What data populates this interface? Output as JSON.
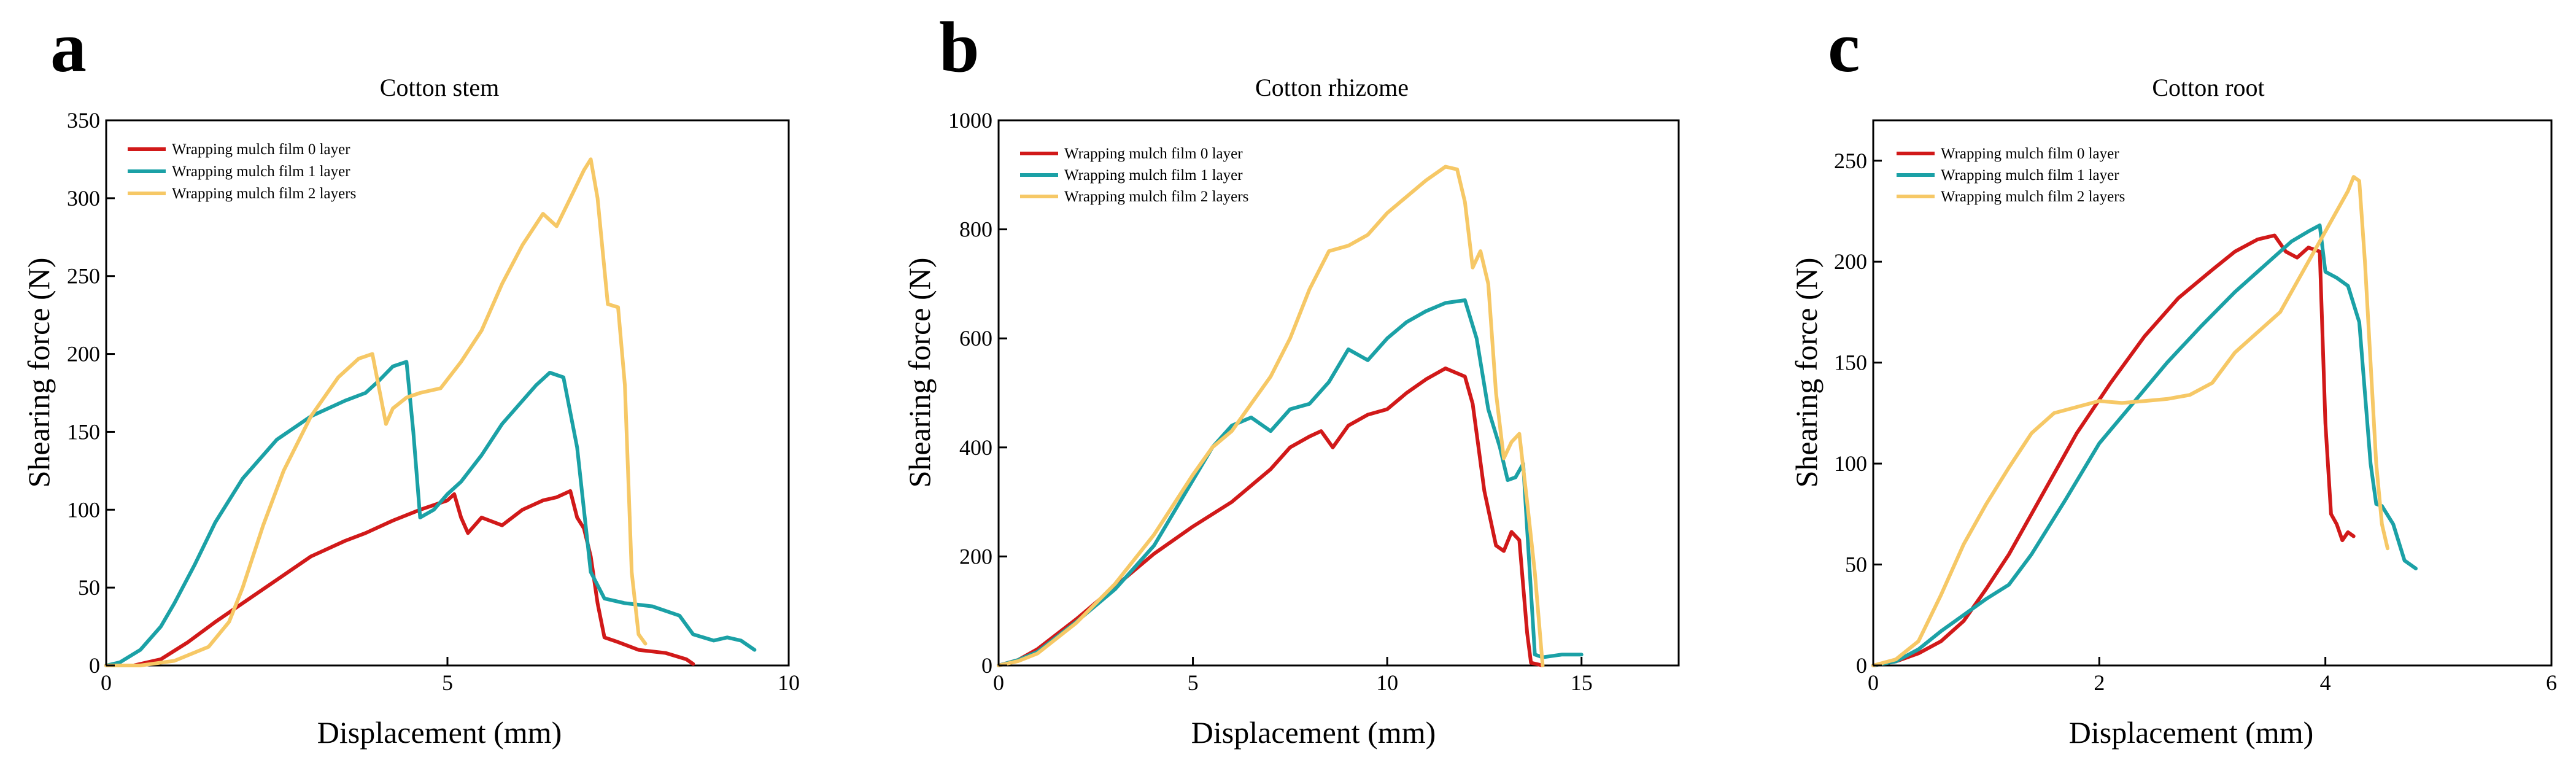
{
  "colors": {
    "layer0": "#d11919",
    "layer1": "#1ba1a6",
    "layer2": "#f6c866",
    "axis": "#000000",
    "background": "#ffffff"
  },
  "panels": [
    {
      "letter": "a"
    },
    {
      "letter": "b"
    },
    {
      "letter": "c"
    }
  ],
  "chart_data": [
    {
      "type": "line",
      "title": "Cotton stem",
      "xlabel": "Displacement (mm)",
      "ylabel": "Shearing force (N)",
      "xlim": [
        0,
        10
      ],
      "ylim": [
        0,
        350
      ],
      "xticks": [
        0,
        5,
        10
      ],
      "yticks": [
        0,
        50,
        100,
        150,
        200,
        250,
        300,
        350
      ],
      "legend_position": "top-left",
      "series": [
        {
          "name": "Wrapping mulch film 0 layer",
          "color": "#d11919",
          "x": [
            0,
            0.4,
            0.8,
            1.2,
            1.6,
            2.0,
            2.5,
            3.0,
            3.5,
            3.8,
            4.2,
            4.6,
            5.0,
            5.1,
            5.2,
            5.3,
            5.5,
            5.8,
            6.1,
            6.4,
            6.6,
            6.8,
            6.9,
            7.0,
            7.1,
            7.2,
            7.3,
            7.5,
            7.8,
            8.2,
            8.5,
            8.6
          ],
          "y": [
            0,
            0,
            4,
            15,
            28,
            40,
            55,
            70,
            80,
            85,
            93,
            100,
            106,
            110,
            95,
            85,
            95,
            90,
            100,
            106,
            108,
            112,
            95,
            88,
            70,
            40,
            18,
            15,
            10,
            8,
            4,
            1
          ]
        },
        {
          "name": "Wrapping mulch film 1 layer",
          "color": "#1ba1a6",
          "x": [
            0,
            0.2,
            0.5,
            0.8,
            1.0,
            1.3,
            1.6,
            2.0,
            2.5,
            3.0,
            3.5,
            3.8,
            4.0,
            4.2,
            4.4,
            4.5,
            4.6,
            4.8,
            5.0,
            5.2,
            5.5,
            5.8,
            6.1,
            6.3,
            6.5,
            6.7,
            6.9,
            7.1,
            7.3,
            7.6,
            8.0,
            8.4,
            8.6,
            8.9,
            9.1,
            9.3,
            9.5
          ],
          "y": [
            0,
            2,
            10,
            25,
            40,
            65,
            92,
            120,
            145,
            160,
            170,
            175,
            183,
            192,
            195,
            150,
            95,
            100,
            110,
            118,
            135,
            155,
            170,
            180,
            188,
            185,
            140,
            60,
            43,
            40,
            38,
            32,
            20,
            16,
            18,
            16,
            10
          ]
        },
        {
          "name": "Wrapping mulch film 2 layers",
          "color": "#f6c866",
          "x": [
            0,
            0.5,
            1.0,
            1.5,
            1.8,
            2.0,
            2.3,
            2.6,
            3.0,
            3.4,
            3.7,
            3.9,
            4.1,
            4.2,
            4.4,
            4.6,
            4.9,
            5.2,
            5.5,
            5.8,
            6.1,
            6.4,
            6.6,
            6.8,
            7.0,
            7.1,
            7.2,
            7.35,
            7.5,
            7.6,
            7.7,
            7.8,
            7.9
          ],
          "y": [
            0,
            0,
            3,
            12,
            28,
            50,
            90,
            125,
            160,
            185,
            197,
            200,
            155,
            165,
            172,
            175,
            178,
            195,
            215,
            245,
            270,
            290,
            282,
            300,
            318,
            325,
            300,
            232,
            230,
            180,
            60,
            20,
            14
          ]
        }
      ]
    },
    {
      "type": "line",
      "title": "Cotton rhizome",
      "xlabel": "Displacement (mm)",
      "ylabel": "Shearing force (N)",
      "xlim": [
        0,
        17.5
      ],
      "ylim": [
        0,
        1000
      ],
      "xticks": [
        0,
        5,
        10,
        15
      ],
      "yticks": [
        0,
        200,
        400,
        600,
        800,
        1000
      ],
      "legend_position": "top-left",
      "series": [
        {
          "name": "Wrapping mulch film 0 layer",
          "color": "#d11919",
          "x": [
            0,
            0.5,
            1.0,
            2.0,
            3.0,
            4.0,
            5.0,
            6.0,
            7.0,
            7.5,
            8.0,
            8.3,
            8.6,
            9.0,
            9.5,
            10.0,
            10.5,
            11.0,
            11.5,
            12.0,
            12.2,
            12.5,
            12.8,
            13.0,
            13.2,
            13.4,
            13.6,
            13.7,
            14.0
          ],
          "y": [
            0,
            10,
            30,
            85,
            145,
            205,
            255,
            300,
            360,
            400,
            420,
            430,
            400,
            440,
            460,
            470,
            500,
            525,
            545,
            530,
            480,
            320,
            220,
            210,
            245,
            230,
            60,
            5,
            0
          ]
        },
        {
          "name": "Wrapping mulch film 1 layer",
          "color": "#1ba1a6",
          "x": [
            0,
            0.5,
            1.0,
            2.0,
            3.0,
            4.0,
            5.0,
            5.5,
            6.0,
            6.5,
            7.0,
            7.5,
            8.0,
            8.5,
            9.0,
            9.5,
            10.0,
            10.5,
            11.0,
            11.5,
            12.0,
            12.3,
            12.6,
            12.9,
            13.1,
            13.3,
            13.5,
            13.6,
            13.8,
            14.0,
            14.5,
            15.0
          ],
          "y": [
            0,
            10,
            25,
            80,
            140,
            220,
            340,
            400,
            440,
            455,
            430,
            470,
            480,
            520,
            580,
            560,
            600,
            630,
            650,
            665,
            670,
            600,
            470,
            400,
            340,
            345,
            370,
            250,
            20,
            15,
            20,
            20
          ]
        },
        {
          "name": "Wrapping mulch film 2 layers",
          "color": "#f6c866",
          "x": [
            0,
            0.5,
            1.0,
            2.0,
            3.0,
            4.0,
            5.0,
            5.5,
            6.0,
            6.5,
            7.0,
            7.5,
            8.0,
            8.5,
            9.0,
            9.5,
            10.0,
            10.5,
            11.0,
            11.5,
            11.8,
            12.0,
            12.2,
            12.4,
            12.6,
            12.8,
            13.0,
            13.2,
            13.4,
            13.6,
            13.8,
            14.0
          ],
          "y": [
            0,
            8,
            22,
            78,
            150,
            240,
            350,
            400,
            430,
            480,
            530,
            600,
            690,
            760,
            770,
            790,
            830,
            860,
            890,
            915,
            910,
            850,
            730,
            760,
            700,
            500,
            380,
            410,
            425,
            300,
            170,
            0
          ]
        }
      ]
    },
    {
      "type": "line",
      "title": "Cotton root",
      "xlabel": "Displacement (mm)",
      "ylabel": "Shearing force (N)",
      "xlim": [
        0,
        6
      ],
      "ylim": [
        0,
        270
      ],
      "xticks": [
        0,
        2,
        4,
        6
      ],
      "yticks": [
        0,
        50,
        100,
        150,
        200,
        250
      ],
      "legend_position": "top-left",
      "series": [
        {
          "name": "Wrapping mulch film 0 layer",
          "color": "#d11919",
          "x": [
            0,
            0.2,
            0.4,
            0.6,
            0.8,
            1.0,
            1.2,
            1.5,
            1.8,
            2.1,
            2.4,
            2.7,
            3.0,
            3.2,
            3.4,
            3.55,
            3.65,
            3.75,
            3.85,
            3.95,
            4.0,
            4.05,
            4.1,
            4.15,
            4.2,
            4.25
          ],
          "y": [
            0,
            2,
            6,
            12,
            22,
            38,
            55,
            85,
            115,
            140,
            163,
            182,
            196,
            205,
            211,
            213,
            205,
            202,
            207,
            205,
            120,
            75,
            70,
            62,
            66,
            64
          ]
        },
        {
          "name": "Wrapping mulch film 1 layer",
          "color": "#1ba1a6",
          "x": [
            0,
            0.2,
            0.4,
            0.6,
            0.8,
            1.0,
            1.2,
            1.4,
            1.7,
            2.0,
            2.3,
            2.6,
            2.9,
            3.2,
            3.5,
            3.7,
            3.85,
            3.95,
            4.0,
            4.1,
            4.2,
            4.3,
            4.4,
            4.45,
            4.5,
            4.6,
            4.7,
            4.8
          ],
          "y": [
            0,
            2,
            8,
            17,
            25,
            33,
            40,
            55,
            82,
            110,
            130,
            150,
            168,
            185,
            200,
            210,
            215,
            218,
            195,
            192,
            188,
            170,
            100,
            80,
            79,
            70,
            52,
            48
          ]
        },
        {
          "name": "Wrapping mulch film 2 layers",
          "color": "#f6c866",
          "x": [
            0,
            0.2,
            0.4,
            0.6,
            0.8,
            1.0,
            1.2,
            1.4,
            1.6,
            1.8,
            2.0,
            2.2,
            2.4,
            2.6,
            2.8,
            3.0,
            3.2,
            3.4,
            3.6,
            3.8,
            4.0,
            4.1,
            4.2,
            4.25,
            4.3,
            4.35,
            4.4,
            4.45,
            4.5,
            4.55
          ],
          "y": [
            0,
            3,
            12,
            35,
            60,
            80,
            98,
            115,
            125,
            128,
            131,
            130,
            131,
            132,
            134,
            140,
            155,
            165,
            175,
            195,
            215,
            225,
            235,
            242,
            240,
            200,
            150,
            100,
            70,
            58
          ]
        }
      ]
    }
  ]
}
